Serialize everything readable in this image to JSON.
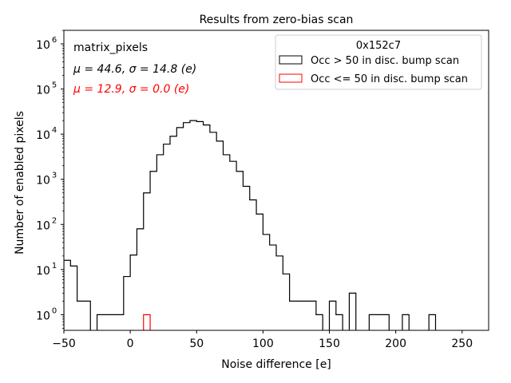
{
  "chart_data": {
    "type": "histogram",
    "title": "Results from zero-bias scan",
    "xlabel": "Noise difference [e]",
    "ylabel": "Number of enabled pixels",
    "xlim": [
      -50,
      270
    ],
    "ylim": [
      0.45,
      2000000
    ],
    "yscale": "log",
    "grid": false,
    "bin_width": 5,
    "x_ticks": [
      -50,
      0,
      50,
      100,
      150,
      200,
      250
    ],
    "x_tick_labels": [
      "−50",
      "0",
      "50",
      "100",
      "150",
      "200",
      "250"
    ],
    "y_ticks": [
      1,
      10,
      100,
      1000,
      10000,
      100000,
      1000000
    ],
    "y_tick_labels": [
      "10",
      "10",
      "10",
      "10",
      "10",
      "10",
      "10"
    ],
    "y_tick_exponents": [
      "0",
      "1",
      "2",
      "3",
      "4",
      "5",
      "6"
    ],
    "annotations": [
      {
        "text": "matrix_pixels",
        "color": "#000000"
      },
      {
        "text": "μ = 44.6, σ = 14.8 (e)",
        "color": "#000000"
      },
      {
        "text": "μ = 12.9, σ = 0.0 (e)",
        "color": "#ff0000"
      }
    ],
    "legend": {
      "title": "0x152c7",
      "placement": "top-right",
      "entries": [
        {
          "label": "Occ > 50 in disc. bump scan",
          "color": "#000000"
        },
        {
          "label": "Occ <= 50 in disc. bump scan",
          "color": "#ff0000"
        }
      ]
    },
    "series": [
      {
        "name": "Occ > 50 in disc. bump scan",
        "color": "#000000",
        "bin_starts": [
          -50,
          -45,
          -40,
          -35,
          -30,
          -25,
          -20,
          -15,
          -10,
          -5,
          0,
          5,
          10,
          15,
          20,
          25,
          30,
          35,
          40,
          45,
          50,
          55,
          60,
          65,
          70,
          75,
          80,
          85,
          90,
          95,
          100,
          105,
          110,
          115,
          120,
          125,
          130,
          135,
          140,
          145,
          150,
          155,
          160,
          165,
          170,
          175,
          180,
          185,
          190,
          195,
          200,
          205,
          210,
          215,
          220,
          225,
          230
        ],
        "values": [
          16,
          12,
          2,
          2,
          0,
          1,
          1,
          1,
          1,
          7,
          21,
          80,
          500,
          1500,
          3500,
          6000,
          9000,
          14000,
          18000,
          20000,
          19000,
          16000,
          11000,
          7000,
          3500,
          2500,
          1500,
          700,
          350,
          170,
          60,
          35,
          20,
          8,
          2,
          2,
          2,
          2,
          1,
          0,
          2,
          1,
          0,
          3,
          0,
          0,
          1,
          1,
          1,
          0,
          0,
          1,
          0,
          0,
          0,
          1,
          0
        ]
      },
      {
        "name": "Occ <= 50 in disc. bump scan",
        "color": "#ff0000",
        "bin_starts": [
          10
        ],
        "values": [
          1
        ],
        "bin_width": 5
      }
    ]
  }
}
